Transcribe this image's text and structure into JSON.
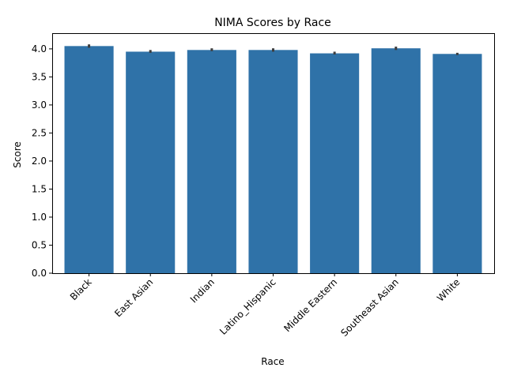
{
  "chart_data": {
    "type": "bar",
    "title": "NIMA Scores by Race",
    "xlabel": "Race",
    "ylabel": "Score",
    "categories": [
      "Black",
      "East Asian",
      "Indian",
      "Latino_Hispanic",
      "Middle Eastern",
      "Southeast Asian",
      "White"
    ],
    "values": [
      4.05,
      3.95,
      3.98,
      3.98,
      3.92,
      4.01,
      3.91
    ],
    "error_low": [
      4.02,
      3.93,
      3.96,
      3.95,
      3.9,
      3.98,
      3.89
    ],
    "error_high": [
      4.08,
      3.98,
      4.01,
      4.01,
      3.95,
      4.04,
      3.93
    ],
    "ylim": [
      0,
      4.28
    ],
    "yticks": [
      "0.0",
      "0.5",
      "1.0",
      "1.5",
      "2.0",
      "2.5",
      "3.0",
      "3.5",
      "4.0"
    ],
    "bar_color": "#2f72a8",
    "error_color": "#3d3d3d",
    "grid": false,
    "legend": "none"
  }
}
